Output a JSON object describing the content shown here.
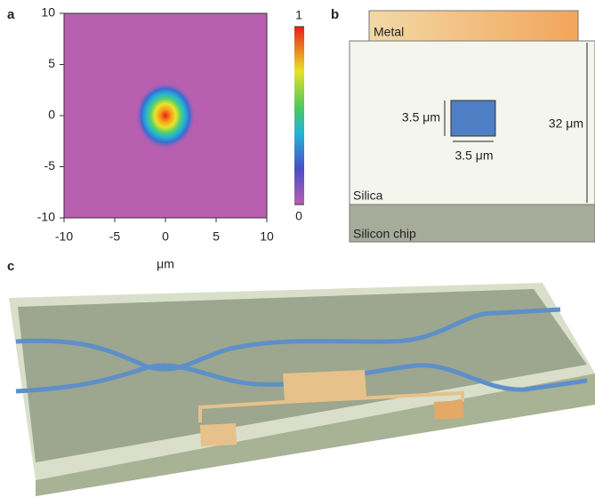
{
  "chart_data": {
    "type": "heatmap",
    "panel_label": "a",
    "xlim": [
      -10,
      10
    ],
    "ylim": [
      -10,
      10
    ],
    "xticks": [
      -10,
      -5,
      0,
      5,
      10
    ],
    "yticks": [
      -10,
      -5,
      0,
      5,
      10
    ],
    "x_label": "μm",
    "clim": [
      0,
      1
    ],
    "cticks": [
      1,
      0
    ]
  },
  "panel_b": {
    "panel_label": "b",
    "metal": "Metal",
    "silica": "Silica",
    "silicon": "Silicon chip",
    "core_height": "3.5 μm",
    "core_width": "3.5 μm",
    "cladding_height": "32 μm"
  },
  "panel_c": {
    "panel_label": "c"
  }
}
